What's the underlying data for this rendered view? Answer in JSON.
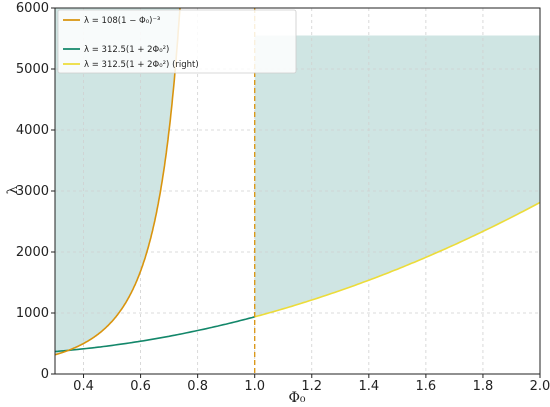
{
  "chart_data": {
    "type": "line",
    "xlabel": "Φ₀",
    "ylabel": "λ",
    "xlim": [
      0.3,
      2.0
    ],
    "ylim": [
      0,
      6000
    ],
    "x_ticks": [
      "0.4",
      "0.6",
      "0.8",
      "1.0",
      "1.2",
      "1.4",
      "1.6",
      "1.8",
      "2.0"
    ],
    "y_ticks": [
      "0",
      "1000",
      "2000",
      "3000",
      "4000",
      "5000",
      "6000"
    ],
    "grid": true,
    "legend_position": "top-left",
    "vertical_line_x": 1.0,
    "series": [
      {
        "name": "λ = 108(1 − Φ₀)⁻³",
        "color": "#d9940e",
        "x": [
          0.3,
          0.35,
          0.4,
          0.45,
          0.5,
          0.55,
          0.6,
          0.65,
          0.7,
          0.72,
          0.74,
          0.75
        ],
        "values": [
          315,
          393,
          500,
          649,
          864,
          1185,
          1688,
          2519,
          4000,
          4945,
          6146,
          6912
        ]
      },
      {
        "name": "λ = 312.5(1 + 2Φ₀²)",
        "color": "#13876a",
        "x": [
          0.3,
          0.4,
          0.5,
          0.6,
          0.7,
          0.8,
          0.9,
          1.0
        ],
        "values": [
          369,
          412,
          469,
          537,
          619,
          712,
          819,
          938
        ]
      },
      {
        "name": "λ = 312.5(1 + 2Φ₀²) (right)",
        "color": "#ecdc3a",
        "x": [
          1.0,
          1.1,
          1.2,
          1.3,
          1.4,
          1.5,
          1.6,
          1.7,
          1.8,
          1.9,
          2.0
        ],
        "values": [
          938,
          1069,
          1213,
          1369,
          1538,
          1719,
          1913,
          2119,
          2338,
          2569,
          2813
        ]
      }
    ],
    "shaded_regions": [
      {
        "color": "#cfe5e3",
        "x_from": 0.3,
        "x_to": 0.75,
        "between": "orange curve and top"
      },
      {
        "color": "#cfe5e3",
        "x_from": 1.0,
        "x_to": 2.0,
        "between": "yellow curve and 5550"
      }
    ]
  },
  "legend": {
    "items": [
      {
        "label": "λ = 108(1 − Φ₀)⁻³",
        "color": "#d9940e"
      },
      {
        "label": "λ = 312.5(1 + 2Φ₀²)",
        "color": "#13876a"
      },
      {
        "label": "λ = 312.5(1 + 2Φ₀²) (right)",
        "color": "#ecdc3a"
      }
    ]
  }
}
